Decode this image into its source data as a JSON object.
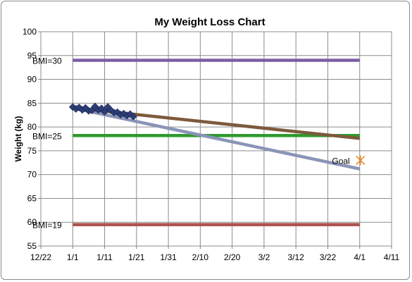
{
  "chart_data": {
    "type": "line",
    "title": "My Weight Loss Chart",
    "xlabel": "",
    "ylabel": "Weight (kg)",
    "ylim": [
      55,
      100
    ],
    "y_ticks": [
      55,
      60,
      65,
      70,
      75,
      80,
      85,
      90,
      95,
      100
    ],
    "x_range_days": [
      -10,
      100
    ],
    "x_ticks": [
      {
        "day": -10,
        "label": "12/22"
      },
      {
        "day": 0,
        "label": "1/1"
      },
      {
        "day": 10,
        "label": "1/11"
      },
      {
        "day": 20,
        "label": "1/21"
      },
      {
        "day": 30,
        "label": "1/31"
      },
      {
        "day": 40,
        "label": "2/10"
      },
      {
        "day": 50,
        "label": "2/20"
      },
      {
        "day": 60,
        "label": "3/2"
      },
      {
        "day": 70,
        "label": "3/12"
      },
      {
        "day": 80,
        "label": "3/22"
      },
      {
        "day": 90,
        "label": "4/1"
      },
      {
        "day": 100,
        "label": "4/11"
      }
    ],
    "grid": true,
    "bmi_lines": [
      {
        "label": "BMI=30",
        "y": 94,
        "color": "#7b5ea7"
      },
      {
        "label": "BMI=25",
        "y": 78.2,
        "color": "#2e9a2e"
      },
      {
        "label": "BMI=19",
        "y": 59.5,
        "color": "#b05050"
      }
    ],
    "weight_data": {
      "color": "#2c3e78",
      "points": [
        {
          "x": 0,
          "y": 84.2
        },
        {
          "x": 1,
          "y": 83.8
        },
        {
          "x": 2,
          "y": 84.1
        },
        {
          "x": 3,
          "y": 83.6
        },
        {
          "x": 4,
          "y": 84.0
        },
        {
          "x": 5,
          "y": 83.4
        },
        {
          "x": 6,
          "y": 83.5
        },
        {
          "x": 7,
          "y": 84.3
        },
        {
          "x": 8,
          "y": 83.6
        },
        {
          "x": 9,
          "y": 83.9
        },
        {
          "x": 10,
          "y": 83.2
        },
        {
          "x": 11,
          "y": 84.2
        },
        {
          "x": 12,
          "y": 83.5
        },
        {
          "x": 13,
          "y": 83.0
        },
        {
          "x": 14,
          "y": 83.1
        },
        {
          "x": 15,
          "y": 82.6
        },
        {
          "x": 16,
          "y": 82.8
        },
        {
          "x": 17,
          "y": 82.4
        },
        {
          "x": 18,
          "y": 82.7
        },
        {
          "x": 19,
          "y": 82.2
        }
      ]
    },
    "trend_lines": [
      {
        "color": "#8a94b8",
        "from": [
          0,
          84.0
        ],
        "to": [
          90,
          71.2
        ]
      },
      {
        "color": "#7d5a3c",
        "from": [
          2,
          83.9
        ],
        "to": [
          90,
          77.6
        ]
      }
    ],
    "goal": {
      "label": "Goal",
      "x": 90,
      "y": 73,
      "color": "#e08a2a"
    }
  }
}
